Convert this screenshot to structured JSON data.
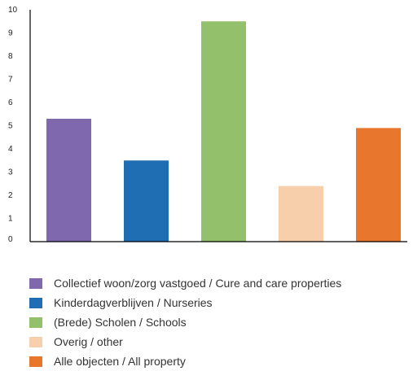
{
  "chart_data": {
    "type": "bar",
    "title": "",
    "xlabel": "",
    "ylabel": "",
    "ylim": [
      0,
      10
    ],
    "yticks": [
      0,
      1,
      2,
      3,
      4,
      5,
      6,
      7,
      8,
      9,
      10
    ],
    "categories": [
      "Collectief woon/zorg vastgoed / Cure and care properties",
      "Kinderdagverblijven / Nurseries",
      "(Brede) Scholen / Schools",
      "Overig / other",
      "Alle objecten / All property"
    ],
    "values": [
      5.3,
      3.5,
      9.5,
      2.4,
      4.9
    ],
    "colors": [
      "#7f68ad",
      "#1f6db3",
      "#92c06b",
      "#f8cfab",
      "#e8762d"
    ],
    "legend_placement": "bottom",
    "grid": false
  }
}
